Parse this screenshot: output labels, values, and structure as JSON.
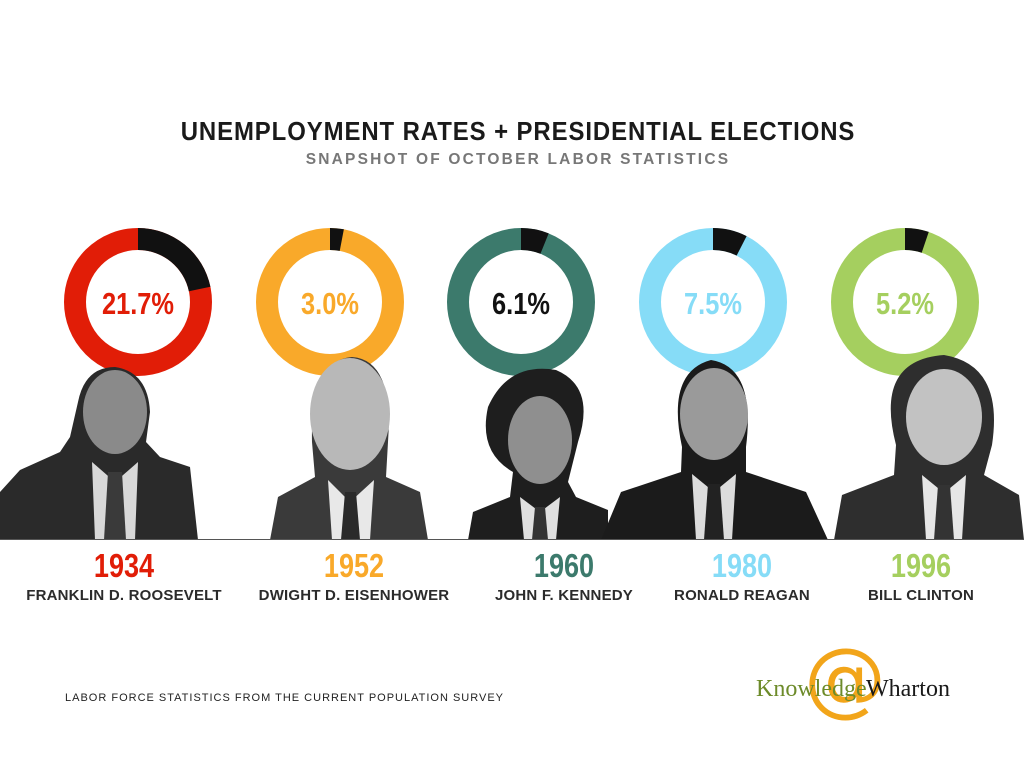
{
  "header": {
    "title": "UNEMPLOYMENT RATES + PRESIDENTIAL ELECTIONS",
    "subtitle": "SNAPSHOT OF OCTOBER LABOR STATISTICS"
  },
  "chart_data": {
    "type": "pie",
    "title": "UNEMPLOYMENT RATES + PRESIDENTIAL ELECTIONS",
    "subtitle": "SNAPSHOT OF OCTOBER LABOR STATISTICS",
    "categories": [
      "1934",
      "1952",
      "1960",
      "1980",
      "1996"
    ],
    "values": [
      21.7,
      3.0,
      6.1,
      7.5,
      5.2
    ],
    "labels": [
      "21.7%",
      "3.0%",
      "6.1%",
      "7.5%",
      "5.2%"
    ],
    "presidents": [
      "FRANKLIN D. ROOSEVELT",
      "DWIGHT D. EISENHOWER",
      "JOHN F. KENNEDY",
      "RONALD REAGAN",
      "BILL CLINTON"
    ],
    "colors": [
      "#e11d07",
      "#f9a92a",
      "#3c7a6c",
      "#86dcf7",
      "#a5cf5f"
    ],
    "highlight_color": "#111111",
    "value_label_color": "#ffffff",
    "value_label_color_dark": "#111111"
  },
  "footer": {
    "source": "LABOR FORCE STATISTICS FROM THE  CURRENT POPULATION SURVEY",
    "logo_at": "@",
    "logo_left": "Knowledge",
    "logo_right": "Wharton"
  }
}
